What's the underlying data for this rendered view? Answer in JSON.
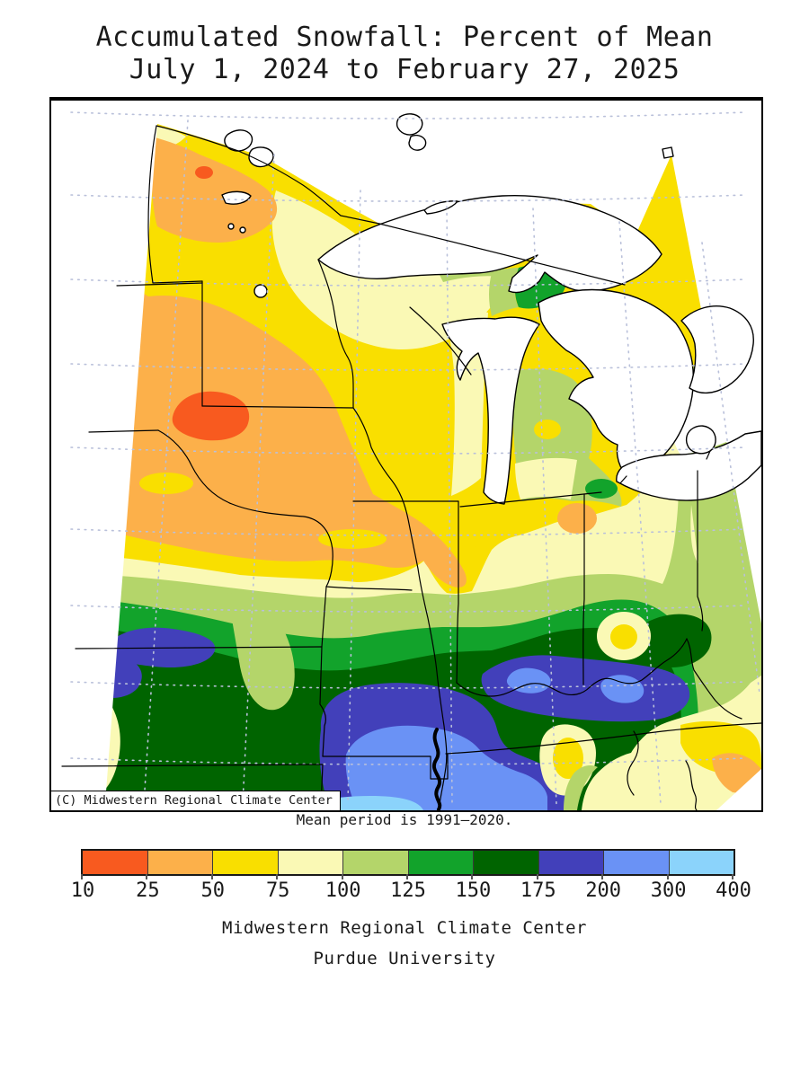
{
  "title": {
    "line1": "Accumulated Snowfall: Percent of Mean",
    "line2": "July 1, 2024 to February 27, 2025"
  },
  "map": {
    "attribution": "(C) Midwestern Regional Climate Center",
    "region": "Midwestern United States and Great Lakes"
  },
  "caption": {
    "mean_period": "Mean period is 1991–2020."
  },
  "legend": {
    "tick_labels": [
      "10",
      "25",
      "50",
      "75",
      "100",
      "125",
      "150",
      "175",
      "200",
      "300",
      "400"
    ],
    "segment_colors": [
      "#F85A1F",
      "#FCB04A",
      "#F9DF00",
      "#FAF9B5",
      "#B4D56A",
      "#12A32B",
      "#006400",
      "#4240BA",
      "#6A92F5",
      "#8BD3FB"
    ],
    "units": "percent of mean"
  },
  "chart_data": {
    "type": "contour-map",
    "variable": "Accumulated Snowfall: Percent of Mean",
    "period": "July 1, 2024 to February 27, 2025",
    "legend_thresholds": [
      10,
      25,
      50,
      75,
      100,
      125,
      150,
      175,
      200,
      300,
      400
    ],
    "legend_colors": [
      "#F85A1F",
      "#FCB04A",
      "#F9DF00",
      "#FAF9B5",
      "#B4D56A",
      "#12A32B",
      "#006400",
      "#4240BA",
      "#6A92F5",
      "#8BD3FB"
    ]
  },
  "footer": {
    "line1": "Midwestern Regional Climate Center",
    "line2": "Purdue University"
  },
  "map_colors": {
    "water_and_nodata": "#FFFFFF",
    "state_border": "#000000",
    "graticule": "#B9C0DA"
  }
}
